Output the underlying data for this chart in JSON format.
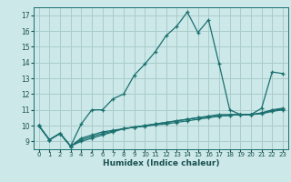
{
  "background_color": "#cce8e8",
  "grid_color": "#aacccc",
  "line_color": "#1a7070",
  "xlabel": "Humidex (Indice chaleur)",
  "xlim": [
    -0.5,
    23.5
  ],
  "ylim": [
    8.5,
    17.5
  ],
  "xticks": [
    0,
    1,
    2,
    3,
    4,
    5,
    6,
    7,
    8,
    9,
    10,
    11,
    12,
    13,
    14,
    15,
    16,
    17,
    18,
    19,
    20,
    21,
    22,
    23
  ],
  "yticks": [
    9,
    10,
    11,
    12,
    13,
    14,
    15,
    16,
    17
  ],
  "series": [
    {
      "x": [
        0,
        1,
        2,
        3,
        4,
        5,
        6,
        7,
        8,
        9,
        10,
        11,
        12,
        13,
        14,
        15,
        16,
        17,
        18,
        19,
        20,
        21,
        22,
        23
      ],
      "y": [
        10.0,
        9.1,
        9.5,
        8.7,
        10.1,
        11.0,
        11.0,
        11.7,
        12.0,
        13.2,
        13.9,
        14.7,
        15.7,
        16.3,
        17.2,
        15.9,
        16.7,
        13.9,
        11.0,
        10.7,
        10.7,
        11.1,
        13.4,
        13.3
      ]
    },
    {
      "x": [
        0,
        1,
        2,
        3,
        4,
        5,
        6,
        7,
        8,
        9,
        10,
        11,
        12,
        13,
        14,
        15,
        16,
        17,
        18,
        19,
        20,
        21,
        22,
        23
      ],
      "y": [
        10.0,
        9.1,
        9.5,
        8.7,
        9.2,
        9.4,
        9.6,
        9.7,
        9.8,
        9.9,
        10.0,
        10.1,
        10.2,
        10.3,
        10.4,
        10.5,
        10.6,
        10.7,
        10.7,
        10.7,
        10.7,
        10.8,
        11.0,
        11.1
      ]
    },
    {
      "x": [
        0,
        1,
        2,
        3,
        4,
        5,
        6,
        7,
        8,
        9,
        10,
        11,
        12,
        13,
        14,
        15,
        16,
        17,
        18,
        19,
        20,
        21,
        22,
        23
      ],
      "y": [
        10.0,
        9.1,
        9.5,
        8.7,
        9.0,
        9.2,
        9.4,
        9.6,
        9.8,
        9.9,
        10.0,
        10.1,
        10.2,
        10.3,
        10.4,
        10.5,
        10.55,
        10.6,
        10.65,
        10.7,
        10.7,
        10.75,
        10.9,
        11.0
      ]
    },
    {
      "x": [
        0,
        1,
        2,
        3,
        4,
        5,
        6,
        7,
        8,
        9,
        10,
        11,
        12,
        13,
        14,
        15,
        16,
        17,
        18,
        19,
        20,
        21,
        22,
        23
      ],
      "y": [
        10.0,
        9.1,
        9.5,
        8.7,
        9.1,
        9.3,
        9.5,
        9.65,
        9.8,
        9.9,
        9.95,
        10.05,
        10.1,
        10.2,
        10.3,
        10.4,
        10.5,
        10.6,
        10.65,
        10.7,
        10.7,
        10.8,
        10.95,
        11.05
      ]
    }
  ]
}
